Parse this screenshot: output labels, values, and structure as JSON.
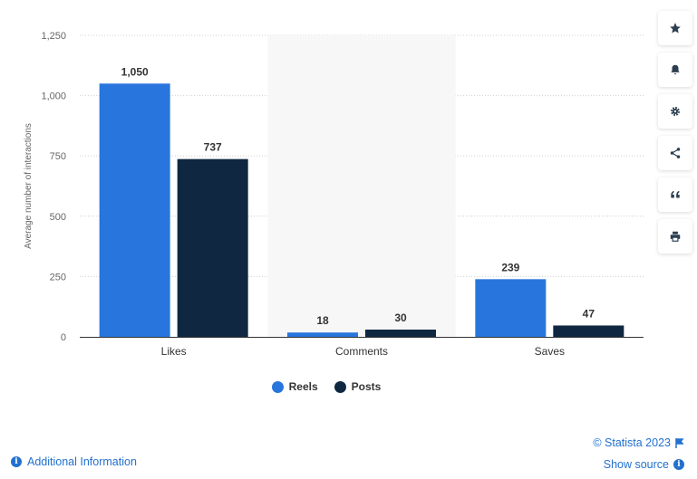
{
  "chart_data": {
    "type": "bar",
    "categories": [
      "Likes",
      "Comments",
      "Saves"
    ],
    "series": [
      {
        "name": "Reels",
        "values": [
          1050,
          18,
          239
        ],
        "labels": [
          "1,050",
          "18",
          "239"
        ],
        "color": "#2876dd"
      },
      {
        "name": "Posts",
        "values": [
          737,
          30,
          47
        ],
        "labels": [
          "737",
          "30",
          "47"
        ],
        "color": "#0f2741"
      }
    ],
    "xlabel": "",
    "ylabel": "Average number of interactions",
    "ylim": [
      0,
      1250
    ],
    "yticks": [
      0,
      250,
      500,
      750,
      1000,
      1250
    ],
    "ytick_labels": [
      "0",
      "250",
      "500",
      "750",
      "1,000",
      "1,250"
    ],
    "grid": "horizontal dotted",
    "highlighted_category": "Comments",
    "legend": "bottom-center"
  },
  "toolbar": {
    "icons": [
      "star-icon",
      "bell-icon",
      "gear-icon",
      "share-icon",
      "quote-icon",
      "print-icon"
    ]
  },
  "footer": {
    "copyright": "© Statista 2023",
    "show_source": "Show source",
    "additional_info": "Additional Information"
  },
  "colors": {
    "link": "#2271ce",
    "reels": "#2876dd",
    "posts": "#0f2741"
  }
}
